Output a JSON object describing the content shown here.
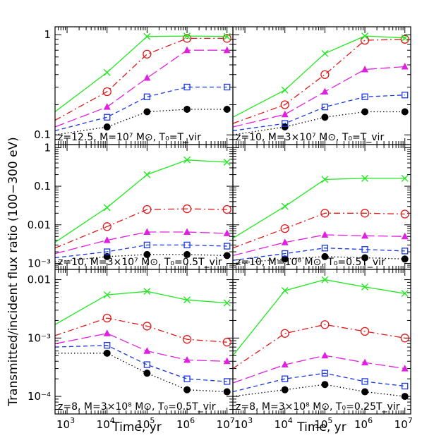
{
  "colors": {
    "F": "#22e822",
    "E": "#e01818",
    "D": "#e020e0",
    "C": "#1a38e0",
    "B": "#000000"
  },
  "series_styles": [
    {
      "id": "F",
      "marker": "cross",
      "dash": "none"
    },
    {
      "id": "E",
      "marker": "circle-open",
      "dash": "dashdot"
    },
    {
      "id": "D",
      "marker": "triangle-filled",
      "dash": "longdash"
    },
    {
      "id": "C",
      "marker": "square-open",
      "dash": "dash"
    },
    {
      "id": "B",
      "marker": "circle-filled",
      "dash": "dot"
    }
  ],
  "figure": {
    "ylabel": "Transmitted/incident flux ratio (100−300 eV)",
    "xlabel_left": "Time, yr",
    "xlabel_right": "Time, yr",
    "x_ticks": [
      "10",
      "10",
      "10",
      "10",
      "10"
    ],
    "x_tick_exps": [
      "3",
      "4",
      "5",
      "6",
      "7"
    ]
  },
  "chart_data": [
    {
      "type": "line",
      "panel": "top-left",
      "label": "z=12.5, M=10⁷ M⊙, T₀=T_vir",
      "xscale": "log",
      "yscale": "log",
      "xlim": [
        500,
        14000000
      ],
      "ylim": [
        0.08,
        1.2
      ],
      "yticks": [
        "1",
        "0.1"
      ],
      "x": [
        500,
        10000,
        100000,
        1000000,
        10000000
      ],
      "series": [
        {
          "id": "F",
          "values": [
            0.17,
            0.42,
            0.96,
            0.97,
            0.96
          ]
        },
        {
          "id": "E",
          "values": [
            0.14,
            0.27,
            0.64,
            0.92,
            0.92
          ]
        },
        {
          "id": "D",
          "values": [
            0.12,
            0.19,
            0.37,
            0.7,
            0.7
          ]
        },
        {
          "id": "C",
          "values": [
            0.11,
            0.15,
            0.24,
            0.3,
            0.3
          ]
        },
        {
          "id": "B",
          "values": [
            0.1,
            0.12,
            0.17,
            0.18,
            0.18
          ]
        }
      ]
    },
    {
      "type": "line",
      "panel": "top-right",
      "label": "z=10, M=3×10⁷ M⊙, T₀=T_vir",
      "xscale": "log",
      "yscale": "log",
      "xlim": [
        500,
        14000000
      ],
      "ylim": [
        0.08,
        1.2
      ],
      "yticks": [],
      "x": [
        500,
        10000,
        100000,
        1000000,
        10000000
      ],
      "series": [
        {
          "id": "F",
          "values": [
            0.15,
            0.28,
            0.65,
            0.97,
            0.93
          ]
        },
        {
          "id": "E",
          "values": [
            0.13,
            0.2,
            0.4,
            0.88,
            0.9
          ]
        },
        {
          "id": "D",
          "values": [
            0.12,
            0.16,
            0.27,
            0.45,
            0.48
          ]
        },
        {
          "id": "C",
          "values": [
            0.11,
            0.13,
            0.19,
            0.24,
            0.25
          ]
        },
        {
          "id": "B",
          "values": [
            0.1,
            0.12,
            0.15,
            0.17,
            0.17
          ]
        }
      ]
    },
    {
      "type": "line",
      "panel": "middle-left",
      "label": "z=10, M=3×10⁷ M⊙, T₀=0.5T_vir",
      "xscale": "log",
      "yscale": "log",
      "xlim": [
        500,
        14000000
      ],
      "ylim": [
        0.0007,
        1.2
      ],
      "yticks": [
        "1",
        "0.1",
        "0.01",
        "10⁻³"
      ],
      "x": [
        500,
        10000,
        100000,
        1000000,
        10000000
      ],
      "series": [
        {
          "id": "F",
          "values": [
            0.0035,
            0.028,
            0.2,
            0.48,
            0.42
          ]
        },
        {
          "id": "E",
          "values": [
            0.0025,
            0.009,
            0.025,
            0.026,
            0.025
          ]
        },
        {
          "id": "D",
          "values": [
            0.0018,
            0.004,
            0.0065,
            0.0065,
            0.006
          ]
        },
        {
          "id": "C",
          "values": [
            0.0014,
            0.002,
            0.003,
            0.003,
            0.0028
          ]
        },
        {
          "id": "B",
          "values": [
            0.0011,
            0.0015,
            0.0017,
            0.0017,
            0.0016
          ]
        }
      ]
    },
    {
      "type": "line",
      "panel": "middle-right",
      "label": "z=10, M=10⁸ M⊙, T₀=0.5T_vir",
      "xscale": "log",
      "yscale": "log",
      "xlim": [
        500,
        14000000
      ],
      "ylim": [
        0.0007,
        1.2
      ],
      "yticks": [],
      "x": [
        500,
        10000,
        100000,
        1000000,
        10000000
      ],
      "series": [
        {
          "id": "F",
          "values": [
            0.0045,
            0.03,
            0.15,
            0.16,
            0.16
          ]
        },
        {
          "id": "E",
          "values": [
            0.0025,
            0.008,
            0.02,
            0.02,
            0.019
          ]
        },
        {
          "id": "D",
          "values": [
            0.0016,
            0.0035,
            0.0055,
            0.0052,
            0.005
          ]
        },
        {
          "id": "C",
          "values": [
            0.0012,
            0.0018,
            0.0025,
            0.0023,
            0.0021
          ]
        },
        {
          "id": "B",
          "values": [
            0.001,
            0.0013,
            0.0015,
            0.0014,
            0.0013
          ]
        }
      ]
    },
    {
      "type": "line",
      "panel": "bottom-left",
      "label": "z=8, M=3×10⁸ M⊙, T₀=0.5T_vir",
      "xscale": "log",
      "yscale": "log",
      "xlim": [
        500,
        14000000
      ],
      "ylim": [
        5e-05,
        0.015
      ],
      "yticks": [
        "0.01",
        "10⁻³",
        "10⁻⁴"
      ],
      "x": [
        500,
        10000,
        100000,
        1000000,
        10000000
      ],
      "series": [
        {
          "id": "F",
          "values": [
            0.0017,
            0.0055,
            0.0063,
            0.0045,
            0.004
          ]
        },
        {
          "id": "E",
          "values": [
            0.0011,
            0.0022,
            0.0016,
            0.00095,
            0.00085
          ]
        },
        {
          "id": "D",
          "values": [
            0.0008,
            0.0012,
            0.0006,
            0.00042,
            0.0004
          ]
        },
        {
          "id": "C",
          "values": [
            0.0007,
            0.00075,
            0.00035,
            0.0002,
            0.00018
          ]
        },
        {
          "id": "B",
          "values": [
            0.00055,
            0.00055,
            0.00025,
            0.00013,
            0.00012
          ]
        }
      ]
    },
    {
      "type": "line",
      "panel": "bottom-right",
      "label": "z=8, M=3×10⁸ M⊙, T₀=0.25T_vir",
      "xscale": "log",
      "yscale": "log",
      "xlim": [
        500,
        14000000
      ],
      "ylim": [
        5e-05,
        0.015
      ],
      "yticks": [],
      "x": [
        500,
        10000,
        100000,
        1000000,
        10000000
      ],
      "series": [
        {
          "id": "F",
          "values": [
            0.0005,
            0.0065,
            0.01,
            0.0075,
            0.0058
          ]
        },
        {
          "id": "E",
          "values": [
            0.0003,
            0.0012,
            0.0017,
            0.0013,
            0.001
          ]
        },
        {
          "id": "D",
          "values": [
            0.00017,
            0.00035,
            0.0005,
            0.00038,
            0.0003
          ]
        },
        {
          "id": "C",
          "values": [
            0.00012,
            0.0002,
            0.00025,
            0.00018,
            0.00015
          ]
        },
        {
          "id": "B",
          "values": [
            0.0001,
            0.00013,
            0.00016,
            0.00012,
            0.0001
          ]
        }
      ]
    }
  ]
}
